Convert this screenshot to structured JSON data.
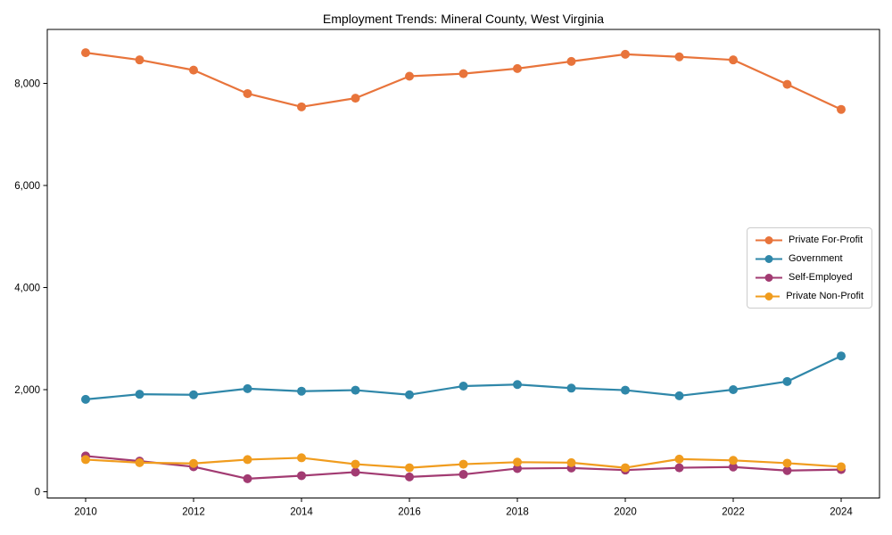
{
  "title": "Employment Trends: Mineral County, West Virginia",
  "chart_data": {
    "type": "line",
    "title": "Employment Trends: Mineral County, West Virginia",
    "xlabel": "",
    "ylabel": "",
    "x": [
      2010,
      2011,
      2012,
      2013,
      2014,
      2015,
      2016,
      2017,
      2018,
      2019,
      2020,
      2021,
      2022,
      2023,
      2024
    ],
    "xticks": [
      2010,
      2012,
      2014,
      2016,
      2018,
      2020,
      2022,
      2024
    ],
    "yticks": [
      0,
      2000,
      4000,
      6000,
      8000
    ],
    "ytick_labels": [
      "0",
      "2,000",
      "4,000",
      "6,000",
      "8,000"
    ],
    "ylim": [
      -120,
      9070
    ],
    "grid": false,
    "legend_position": "center right",
    "marker": "circle",
    "series": [
      {
        "name": "Private For-Profit",
        "color": "#e8743b",
        "values": [
          8600,
          8460,
          8260,
          7800,
          7540,
          7710,
          8140,
          8190,
          8290,
          8430,
          8570,
          8520,
          8460,
          7980,
          7490
        ]
      },
      {
        "name": "Government",
        "color": "#2f87a9",
        "values": [
          1810,
          1910,
          1900,
          2020,
          1970,
          1990,
          1900,
          2070,
          2100,
          2030,
          1990,
          1880,
          2000,
          2160,
          2660
        ]
      },
      {
        "name": "Self-Employed",
        "color": "#a23b72",
        "values": [
          700,
          600,
          490,
          255,
          315,
          385,
          290,
          340,
          455,
          465,
          425,
          470,
          485,
          415,
          435
        ]
      },
      {
        "name": "Private Non-Profit",
        "color": "#f09c1e",
        "values": [
          630,
          570,
          555,
          630,
          665,
          540,
          470,
          540,
          580,
          570,
          470,
          640,
          615,
          560,
          490
        ]
      }
    ]
  }
}
